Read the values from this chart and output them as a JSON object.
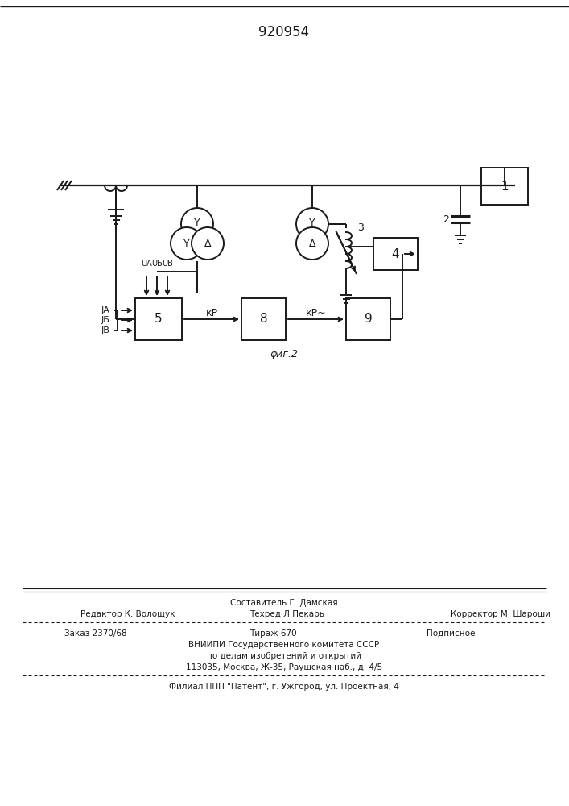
{
  "title": "920954",
  "fig_label": "φиг.2",
  "bg_color": "#ffffff",
  "line_color": "#1a1a1a",
  "label1": "1",
  "label2": "2",
  "label3": "3",
  "label4": "4",
  "label5": "5",
  "label8": "8",
  "label9": "9",
  "kp_label": "кP",
  "kp_tilde_label": "кP~",
  "ua_label": "UА",
  "ub_label": "UБ",
  "uc_label": "UВ",
  "ia_label": "JА",
  "ib_label": "JБ",
  "ic_label": "JВ",
  "y_label": "Y",
  "delta_label": "Δ",
  "footer_sestavitel": "Составитель Г. Дамская",
  "footer_redaktor": "Редактор К. Волощук",
  "footer_tekhred": "Техред Л.Пекарь",
  "footer_korrektor": "Корректор М. Шароши",
  "footer_zakaz": "Заказ 2370/68",
  "footer_tirazh": "Тираж 670",
  "footer_podpisnoe": "Подписное",
  "footer_vniip1": "ВНИИПИ Государственного комитета СССР",
  "footer_vniip2": "по делам изобретений и открытий",
  "footer_addr": "113035, Москва, Ж-35, Раушская наб., д. 4/5",
  "footer_filial": "Филиал ППП \"Патент\", г. Ужгород, ул. Проектная, 4"
}
